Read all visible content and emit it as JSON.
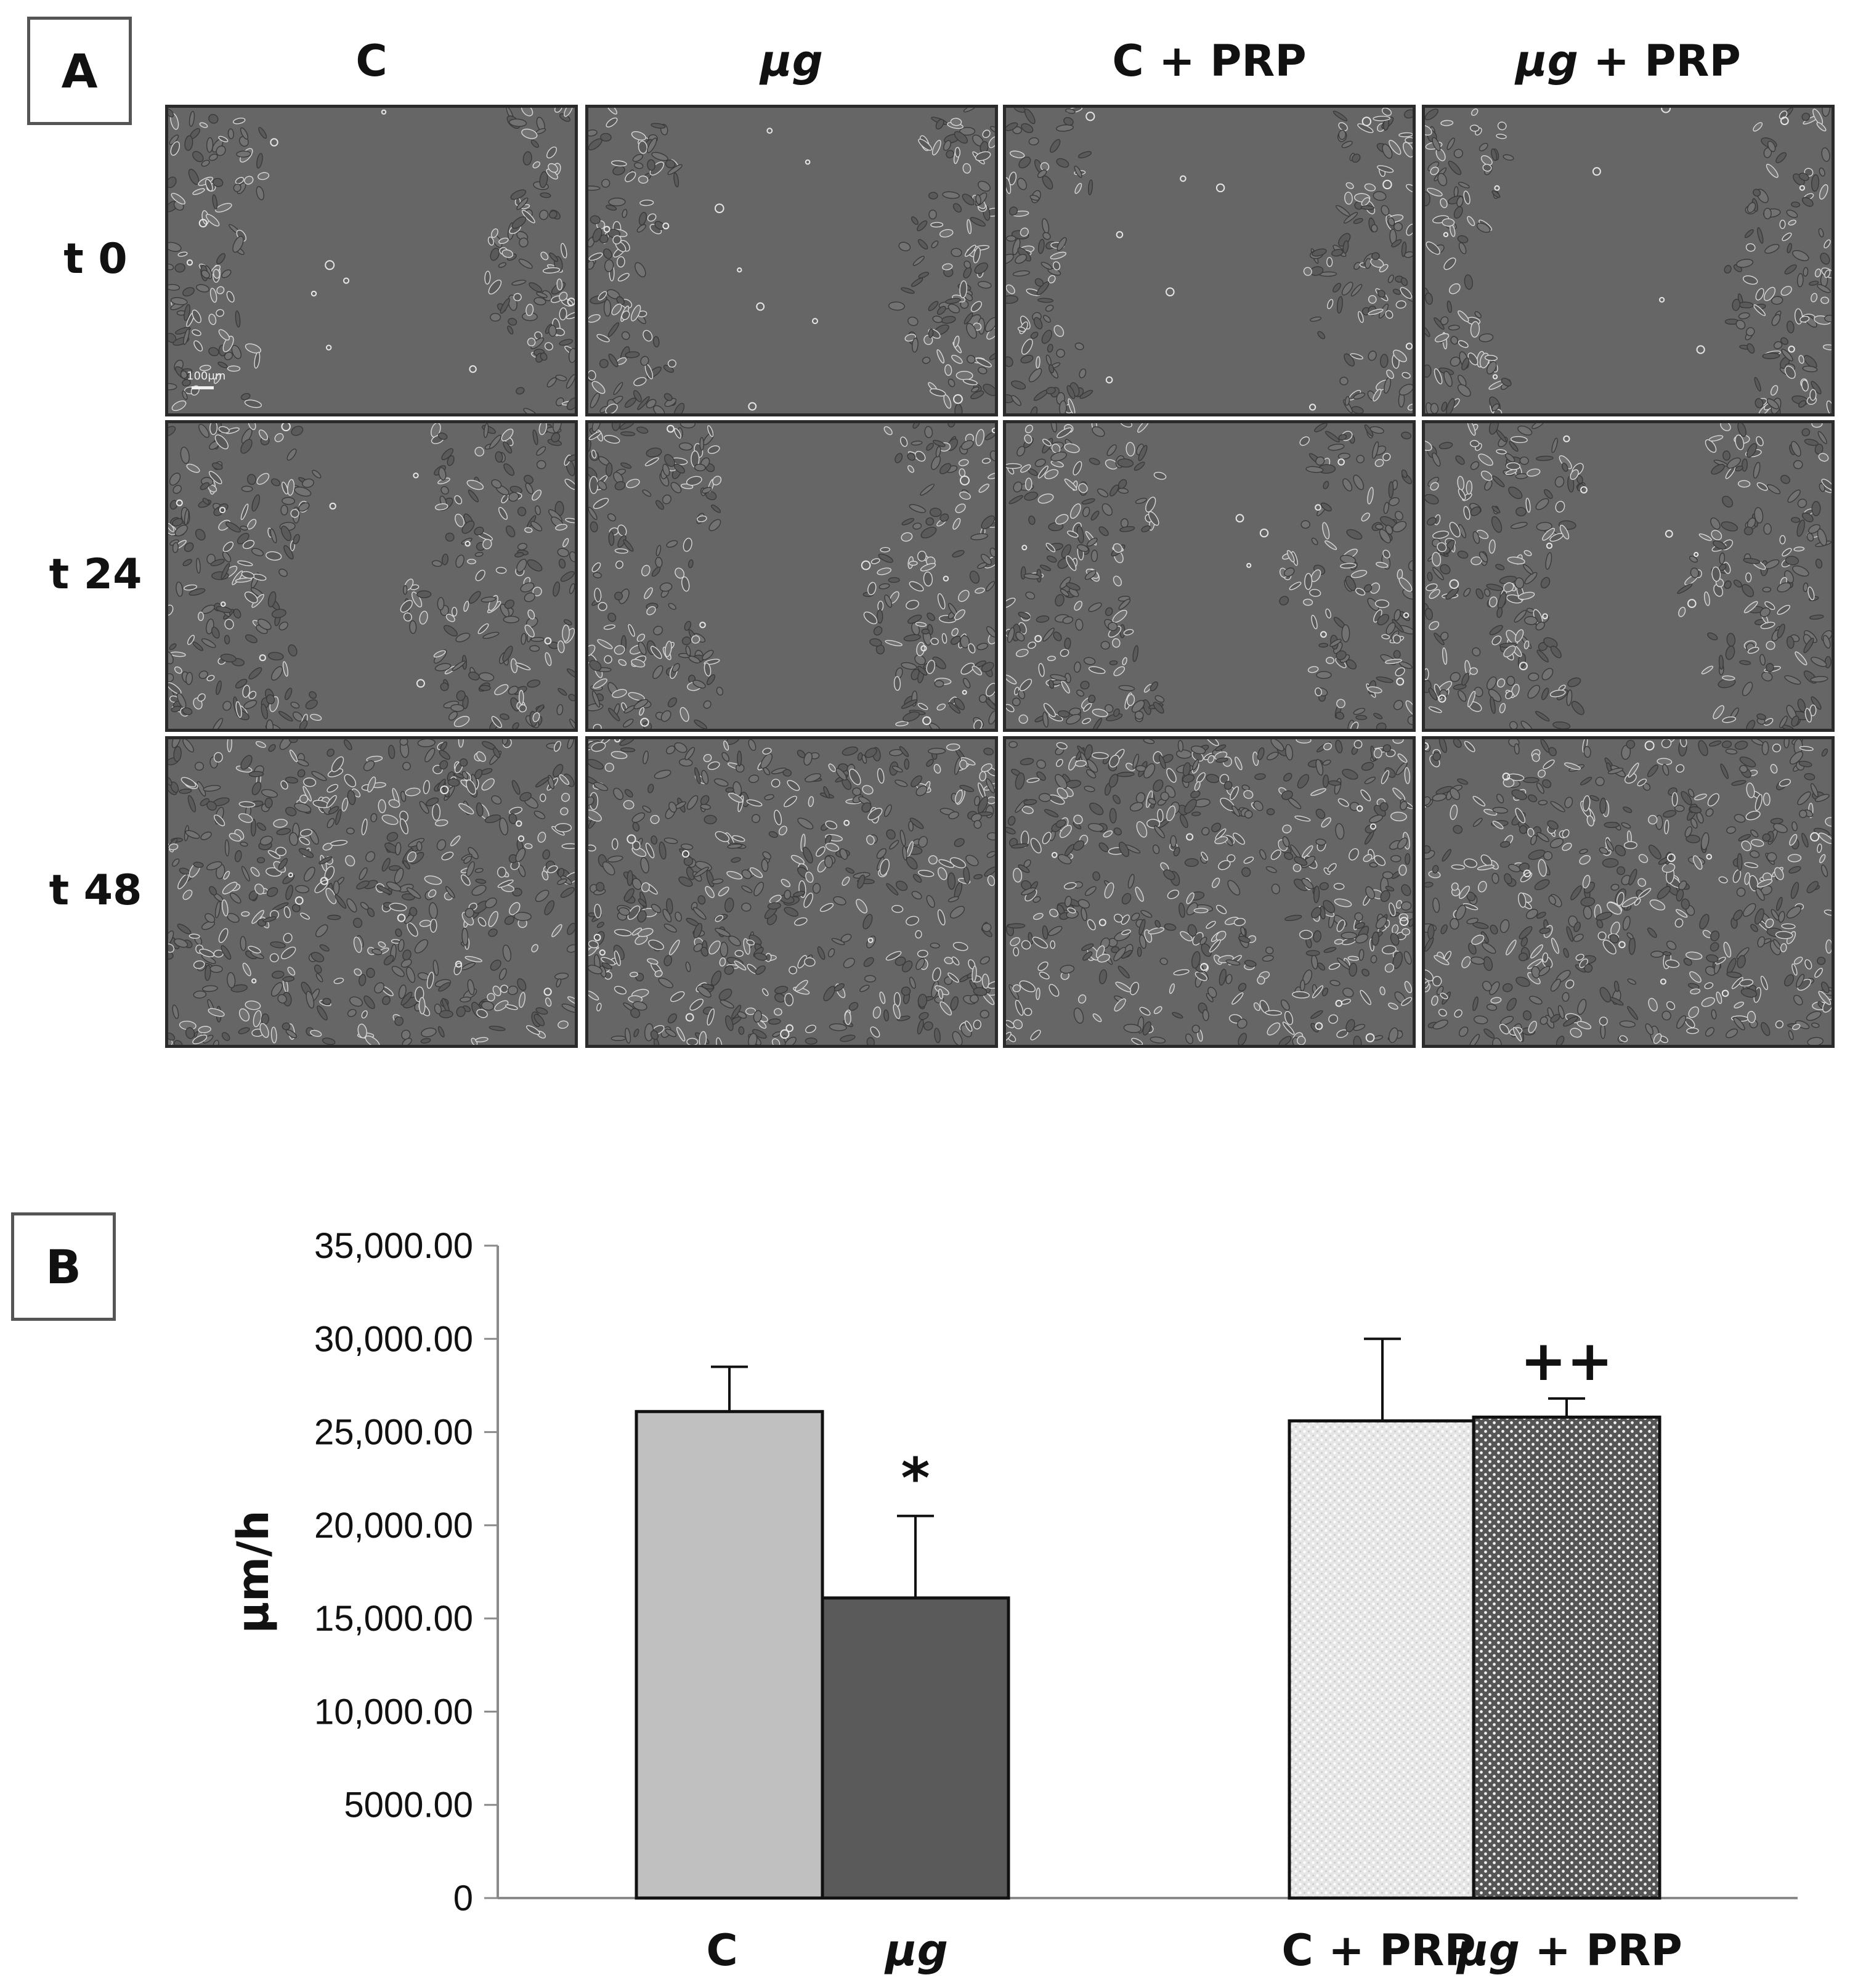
{
  "figure": {
    "panel_a": {
      "letter": "A",
      "column_labels": [
        {
          "prefix": "C",
          "italic": "",
          "suffix": ""
        },
        {
          "prefix": "",
          "italic": "μg",
          "suffix": ""
        },
        {
          "prefix": "C + PRP",
          "italic": "",
          "suffix": ""
        },
        {
          "prefix": "",
          "italic": "μg",
          "suffix": " + PRP"
        }
      ],
      "row_labels": [
        "t 0",
        "t 24",
        "t 48"
      ],
      "scale_bar_text": "100μm",
      "closure_levels": [
        [
          0.0,
          0.0,
          0.0,
          0.0
        ],
        [
          0.5,
          0.3,
          0.4,
          0.45
        ],
        [
          1.0,
          0.95,
          1.0,
          1.0
        ]
      ]
    },
    "panel_b": {
      "letter": "B"
    }
  },
  "chart_data": {
    "type": "bar",
    "title": "",
    "xlabel": "",
    "ylabel": "μm/h",
    "ylim": [
      0,
      35000
    ],
    "yticks": [
      {
        "value": 0,
        "label": "0"
      },
      {
        "value": 5000,
        "label": "5000.00"
      },
      {
        "value": 10000,
        "label": "10,000.00"
      },
      {
        "value": 15000,
        "label": "15,000.00"
      },
      {
        "value": 20000,
        "label": "20,000.00"
      },
      {
        "value": 25000,
        "label": "25,000.00"
      },
      {
        "value": 30000,
        "label": "30,000.00"
      },
      {
        "value": 35000,
        "label": "35,000.00"
      }
    ],
    "grid": false,
    "legend": "none",
    "categories": [
      {
        "prefix": "C",
        "italic": "",
        "suffix": ""
      },
      {
        "prefix": "",
        "italic": "μg",
        "suffix": ""
      },
      {
        "prefix": "C + PRP",
        "italic": "",
        "suffix": ""
      },
      {
        "prefix": "",
        "italic": "μg",
        "suffix": " + PRP"
      }
    ],
    "values": [
      26100,
      16100,
      25600,
      25800
    ],
    "errors": [
      2400,
      4400,
      4400,
      1000
    ],
    "annotations": [
      "",
      "*",
      "",
      "++"
    ],
    "colors": [
      "#c0c0c0",
      "#5a5a5a",
      "#e9e9e9",
      "#595959"
    ],
    "patterns": [
      "solid",
      "solid",
      "light-dots",
      "dark-dots"
    ]
  }
}
